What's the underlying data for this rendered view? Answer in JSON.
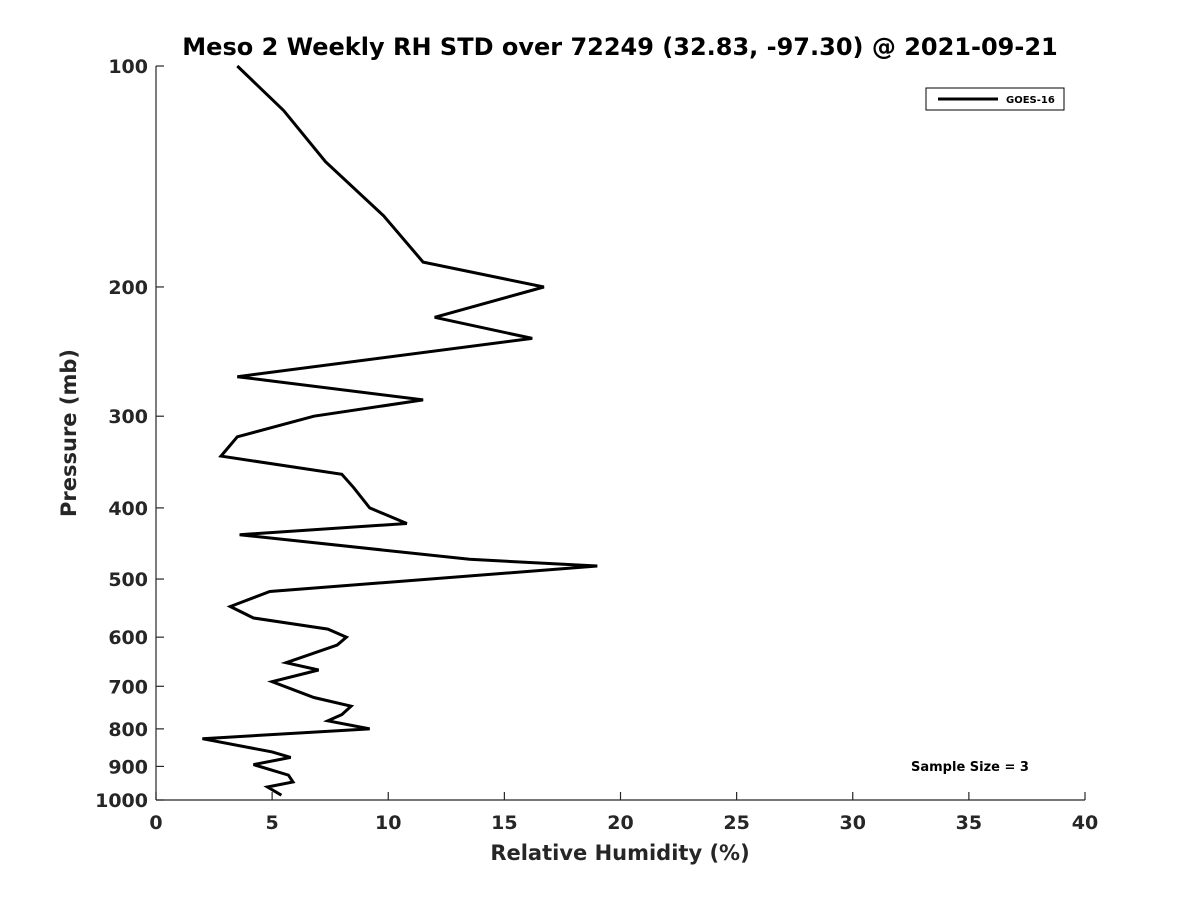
{
  "chart_data": {
    "type": "line",
    "title": "Meso 2 Weekly RH STD over 72249 (32.83, -97.30) @ 2021-09-21",
    "xlabel": "Relative Humidity (%)",
    "ylabel": "Pressure (mb)",
    "xlim": [
      0,
      40
    ],
    "ylim": [
      1000,
      100
    ],
    "y_scale": "log",
    "x_ticks": [
      0,
      5,
      10,
      15,
      20,
      25,
      30,
      35,
      40
    ],
    "y_ticks": [
      100,
      200,
      300,
      400,
      500,
      600,
      700,
      800,
      900,
      1000
    ],
    "grid": false,
    "legend_position": "top-right",
    "annotation": "Sample Size = 3",
    "series": [
      {
        "name": "GOES-16",
        "color": "#000000",
        "x": [
          3.5,
          5.5,
          7.3,
          9.8,
          11.5,
          16.7,
          12.0,
          16.2,
          3.5,
          11.5,
          6.8,
          3.5,
          2.8,
          8.0,
          8.5,
          9.2,
          10.8,
          3.6,
          13.5,
          19.0,
          4.9,
          3.2,
          4.2,
          7.4,
          8.2,
          7.8,
          5.6,
          7.0,
          5.0,
          6.8,
          8.4,
          8.0,
          7.4,
          9.2,
          2.0,
          5.0,
          5.8,
          4.2,
          5.7,
          5.9,
          4.8,
          5.4
        ],
        "y": [
          100,
          115,
          135,
          160,
          185,
          200,
          220,
          235,
          265,
          285,
          300,
          320,
          340,
          360,
          375,
          400,
          420,
          435,
          470,
          480,
          520,
          545,
          565,
          585,
          600,
          615,
          650,
          665,
          690,
          725,
          745,
          765,
          780,
          800,
          825,
          860,
          875,
          895,
          925,
          945,
          960,
          985
        ]
      }
    ]
  }
}
